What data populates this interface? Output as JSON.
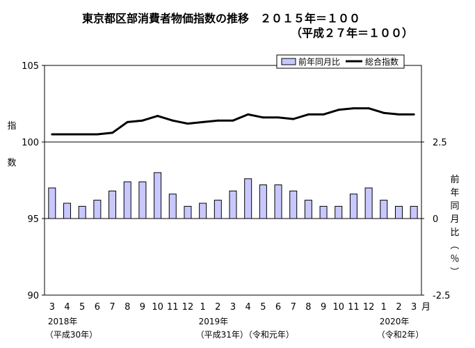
{
  "chart_data": {
    "type": "bar",
    "title": "東京都区部消費者物価指数の推移　２０１５年＝１００",
    "subtitle": "（平成２７年＝１００）",
    "ylabel_left": "指数",
    "ylabel_right": "前年同月比（％）",
    "xlabel": "月",
    "categories": [
      "3",
      "4",
      "5",
      "6",
      "7",
      "8",
      "9",
      "10",
      "11",
      "12",
      "1",
      "2",
      "3",
      "4",
      "5",
      "6",
      "7",
      "8",
      "9",
      "10",
      "11",
      "12",
      "1",
      "2",
      "3"
    ],
    "year_labels": [
      {
        "index": 0,
        "lines": [
          "2018年",
          "（平成30年）"
        ]
      },
      {
        "index": 10,
        "lines": [
          "2019年",
          "（平成31年）（令和元年）"
        ]
      },
      {
        "index": 22,
        "lines": [
          "2020年",
          "（令和2年）"
        ]
      }
    ],
    "left_axis": {
      "min": 90,
      "max": 105,
      "ticks": [
        90,
        95,
        100,
        105
      ]
    },
    "right_axis": {
      "min": -2.5,
      "max": 5,
      "ticks": [
        -2.5,
        0,
        2.5
      ]
    },
    "legend": {
      "placement": "top-right"
    },
    "series": [
      {
        "name": "前年同月比",
        "type": "bar",
        "axis": "right",
        "color": "#c8c8ff",
        "values": [
          1.0,
          0.5,
          0.4,
          0.6,
          0.9,
          1.2,
          1.2,
          1.5,
          0.8,
          0.4,
          0.5,
          0.6,
          0.9,
          1.3,
          1.1,
          1.1,
          0.9,
          0.6,
          0.4,
          0.4,
          0.8,
          1.0,
          0.6,
          0.4,
          0.4
        ]
      },
      {
        "name": "総合指数",
        "type": "line",
        "axis": "left",
        "color": "#000000",
        "values": [
          100.5,
          100.5,
          100.5,
          100.5,
          100.6,
          101.3,
          101.4,
          101.7,
          101.4,
          101.2,
          101.3,
          101.4,
          101.4,
          101.8,
          101.6,
          101.6,
          101.5,
          101.8,
          101.8,
          102.1,
          102.2,
          102.2,
          101.9,
          101.8,
          101.8
        ]
      }
    ]
  }
}
